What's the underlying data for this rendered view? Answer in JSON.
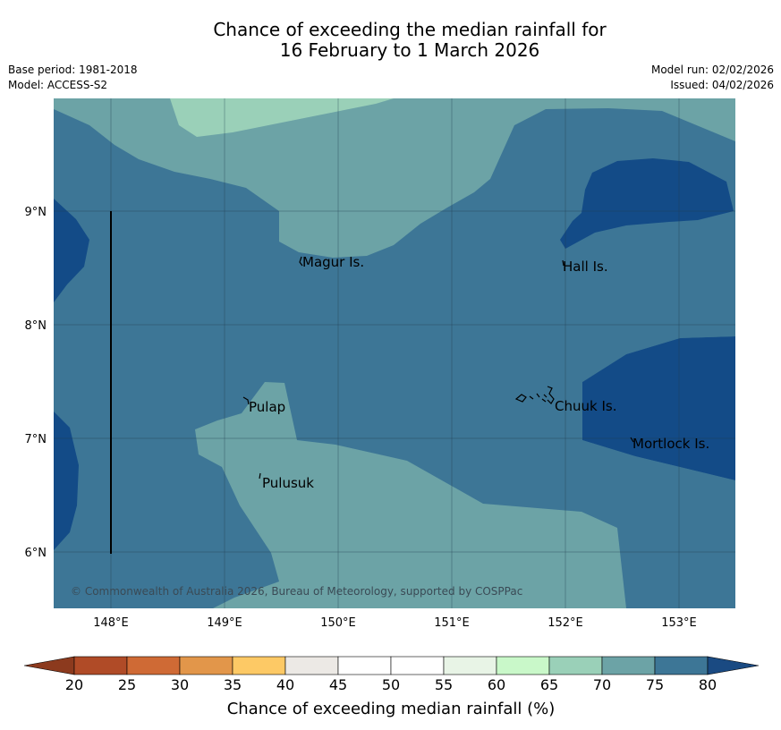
{
  "title_line1": "Chance of exceeding the median rainfall for",
  "title_line2": "16 February to 1 March 2026",
  "meta": {
    "base_period": "Base period: 1981-2018",
    "model": "Model: ACCESS-S2",
    "model_run": "Model run: 02/02/2026",
    "issued": "Issued: 04/02/2026"
  },
  "axes": {
    "lon_labels": [
      "148°E",
      "149°E",
      "150°E",
      "151°E",
      "152°E",
      "153°E"
    ],
    "lat_labels": [
      "9°N",
      "8°N",
      "7°N",
      "6°N"
    ]
  },
  "places": {
    "magur": "Magur Is.",
    "hall": "Hall Is.",
    "pulap": "Pulap",
    "chuuk": "Chuuk Is.",
    "mortlock": "Mortlock Is.",
    "pulusuk": "Pulusuk"
  },
  "credit": "© Commonwealth of Australia 2026, Bureau of Meteorology, supported by COSPPac",
  "colorbar": {
    "labels": [
      "20",
      "25",
      "30",
      "35",
      "40",
      "45",
      "50",
      "55",
      "60",
      "65",
      "70",
      "75",
      "80"
    ],
    "colors": [
      "#8c3a1e",
      "#b04b27",
      "#cf6a35",
      "#e2964a",
      "#fdc965",
      "#ece9e5",
      "#ffffff",
      "#ffffff",
      "#e8f4e6",
      "#c9f8c9",
      "#9ad0b8",
      "#6ca3a6",
      "#3d7696",
      "#1a4a82"
    ],
    "title": "Chance of exceeding median rainfall (%)"
  },
  "zone_colors": {
    "c65_70": "#9ad0b8",
    "c70_75": "#6ca3a6",
    "c75_80": "#3d7696",
    "c80": "#134b87"
  }
}
